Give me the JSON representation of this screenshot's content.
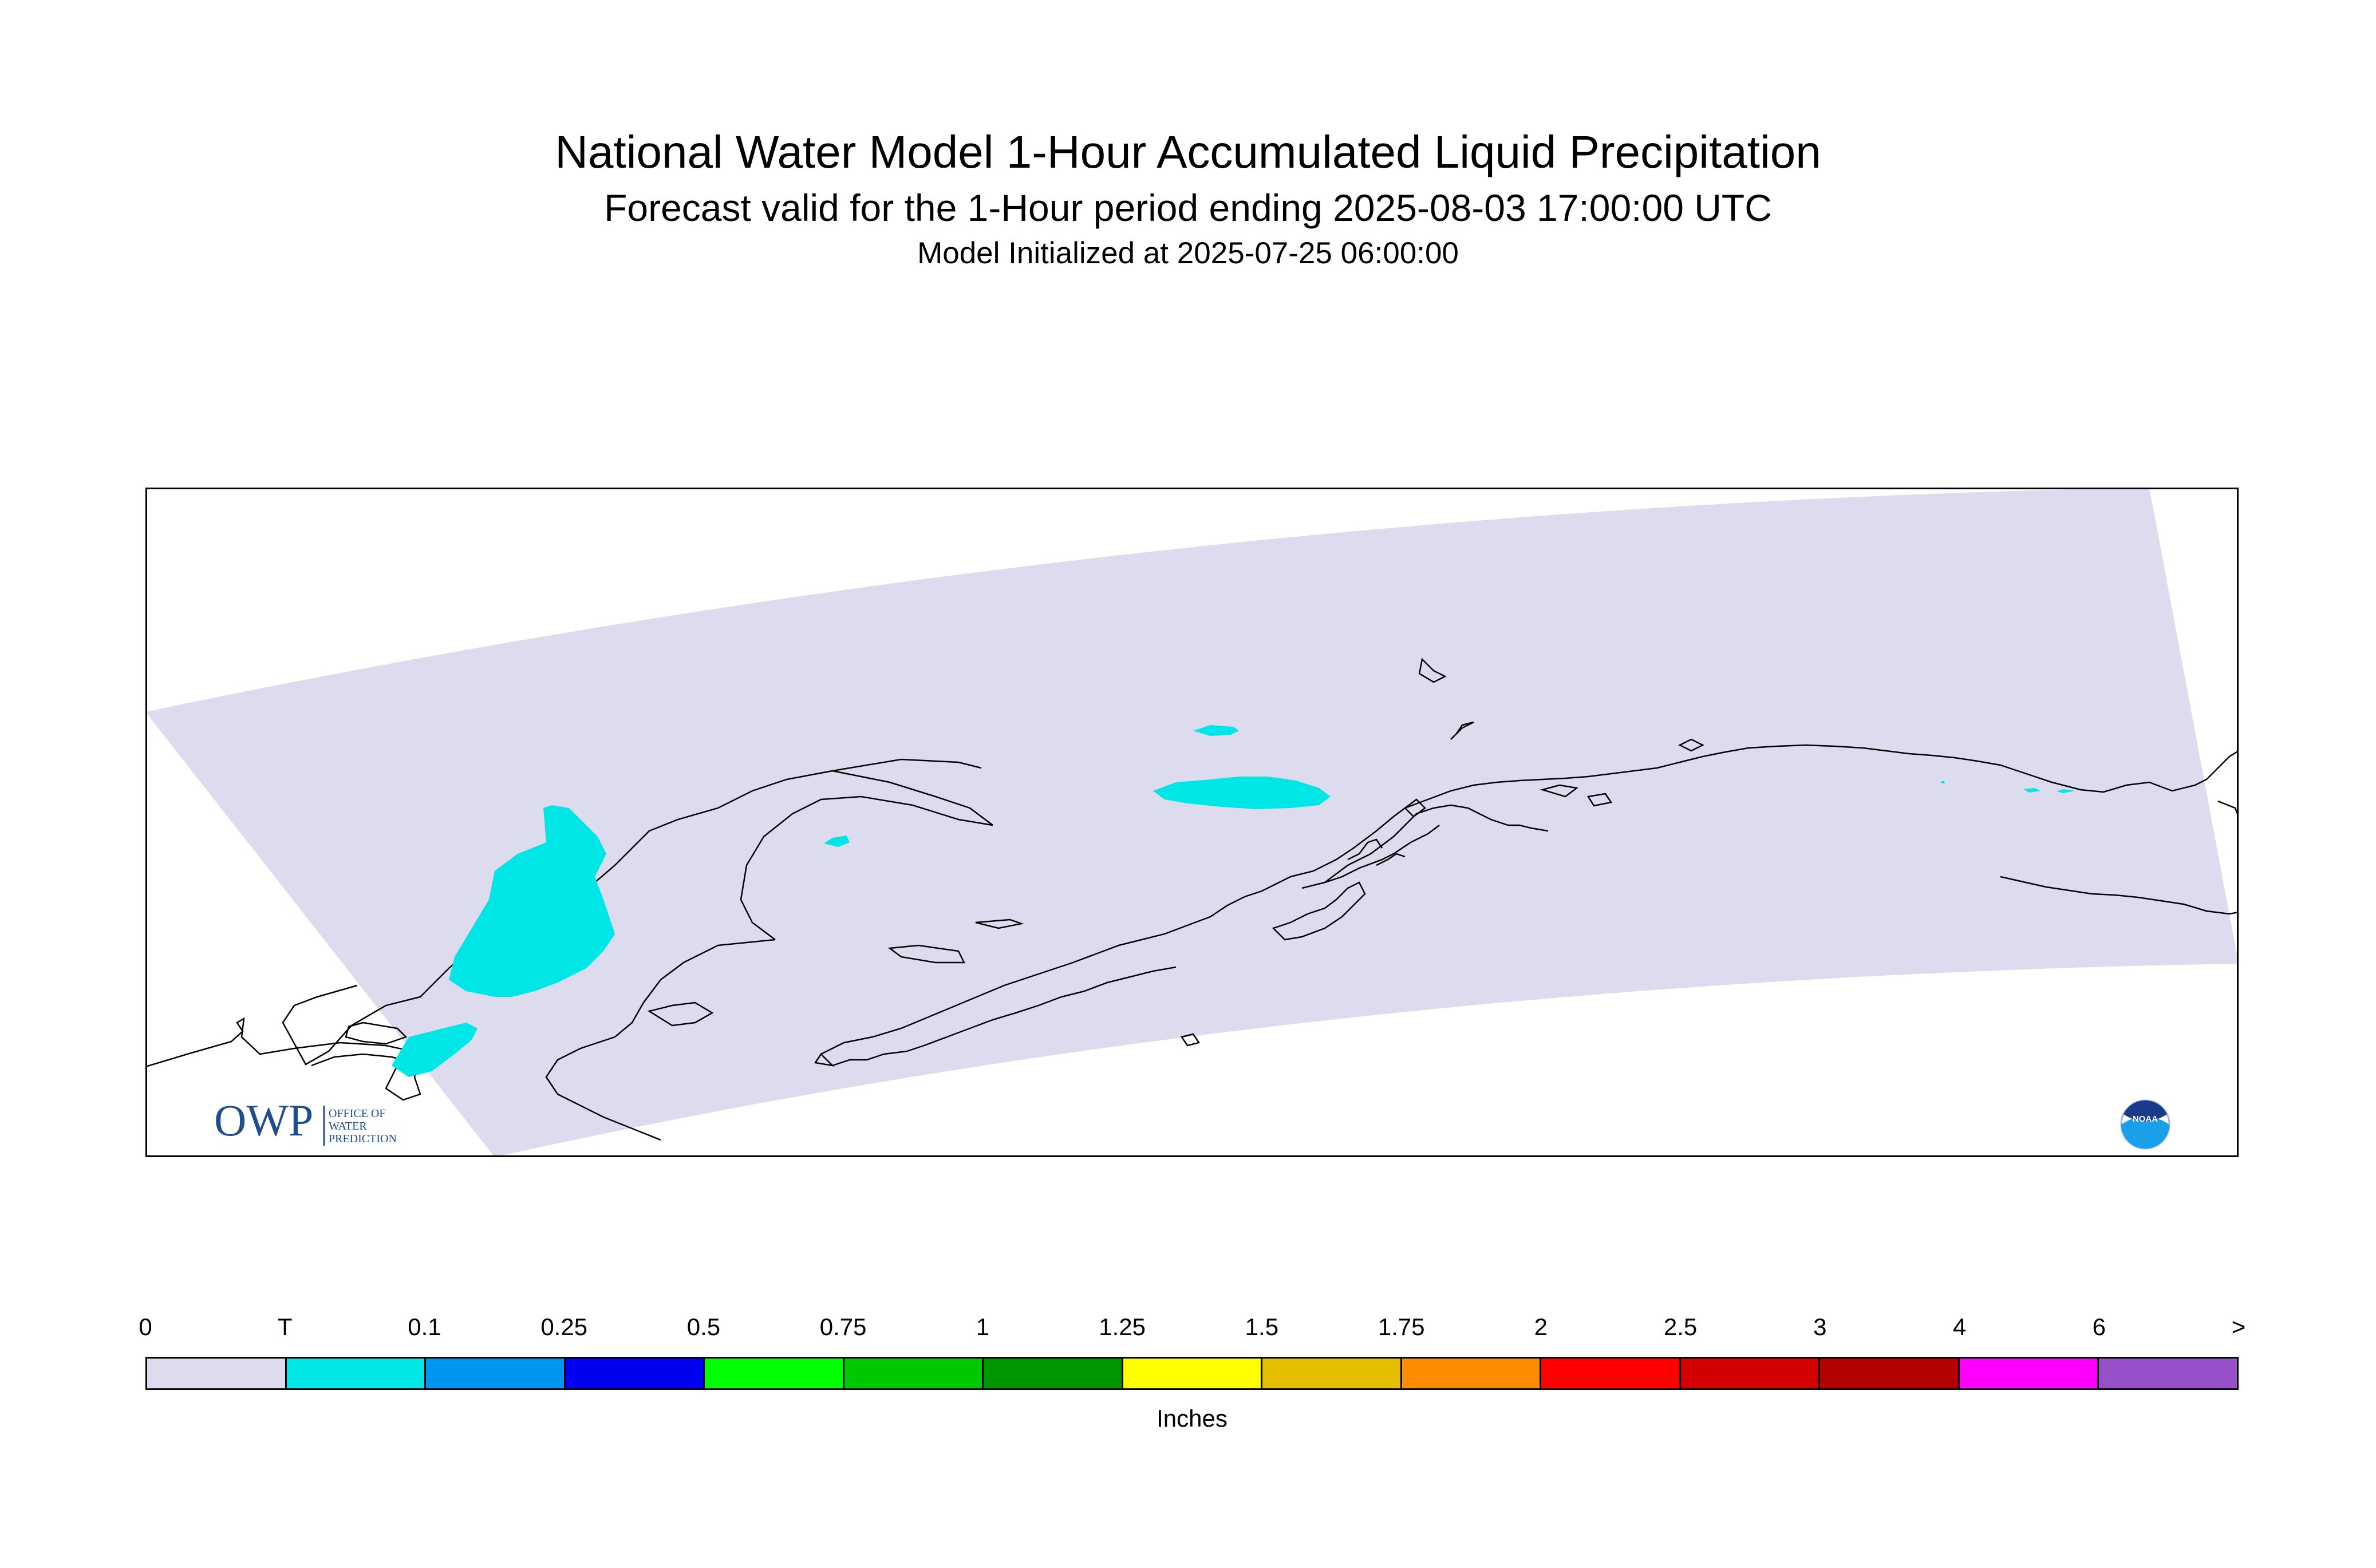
{
  "titles": {
    "main": "National Water Model 1-Hour Accumulated Liquid Precipitation",
    "sub": "Forecast valid for the 1-Hour period ending 2025-08-03 17:00:00 UTC",
    "init": "Model Initialized at 2025-07-25 06:00:00"
  },
  "map": {
    "region": "Alaska",
    "domain_fill_color": "#dcdcee",
    "precip_fill_color": "#00e6e6",
    "coastline_color": "#000000",
    "logos": {
      "owp": {
        "mark": "OWP",
        "lines": [
          "OFFICE OF",
          "WATER",
          "PREDICTION"
        ],
        "color": "#1f4e8c"
      },
      "noaa": {
        "text": "NOAA",
        "icon": "noaa-logo-icon"
      }
    }
  },
  "legend": {
    "units": "Inches",
    "tick_labels": [
      "0",
      "T",
      "0.1",
      "0.25",
      "0.5",
      "0.75",
      "1",
      "1.25",
      "1.5",
      "1.75",
      "2",
      "2.5",
      "3",
      "4",
      "6",
      ">"
    ],
    "colors": [
      "#dcdcee",
      "#00e6e6",
      "#0096f0",
      "#0000f0",
      "#00ff00",
      "#00c800",
      "#009600",
      "#ffff00",
      "#e6be00",
      "#ff8c00",
      "#ff0000",
      "#d20000",
      "#b40000",
      "#ff00ff",
      "#9650c8"
    ]
  }
}
